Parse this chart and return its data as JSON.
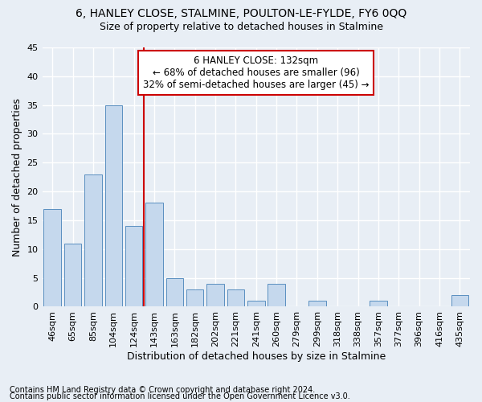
{
  "title1": "6, HANLEY CLOSE, STALMINE, POULTON-LE-FYLDE, FY6 0QQ",
  "title2": "Size of property relative to detached houses in Stalmine",
  "xlabel": "Distribution of detached houses by size in Stalmine",
  "ylabel": "Number of detached properties",
  "categories": [
    "46sqm",
    "65sqm",
    "85sqm",
    "104sqm",
    "124sqm",
    "143sqm",
    "163sqm",
    "182sqm",
    "202sqm",
    "221sqm",
    "241sqm",
    "260sqm",
    "279sqm",
    "299sqm",
    "318sqm",
    "338sqm",
    "357sqm",
    "377sqm",
    "396sqm",
    "416sqm",
    "435sqm"
  ],
  "values": [
    17,
    11,
    23,
    35,
    14,
    18,
    5,
    3,
    4,
    3,
    1,
    4,
    0,
    1,
    0,
    0,
    1,
    0,
    0,
    0,
    2
  ],
  "bar_color": "#c5d8ed",
  "bar_edge_color": "#5a8fc0",
  "annotation_line1": "6 HANLEY CLOSE: 132sqm",
  "annotation_line2": "← 68% of detached houses are smaller (96)",
  "annotation_line3": "32% of semi-detached houses are larger (45) →",
  "vline_x": 4.5,
  "annotation_box_color": "#ffffff",
  "annotation_box_edge": "#cc0000",
  "vline_color": "#cc0000",
  "footnote1": "Contains HM Land Registry data © Crown copyright and database right 2024.",
  "footnote2": "Contains public sector information licensed under the Open Government Licence v3.0.",
  "ylim": [
    0,
    45
  ],
  "yticks": [
    0,
    5,
    10,
    15,
    20,
    25,
    30,
    35,
    40,
    45
  ],
  "background_color": "#e8eef5",
  "plot_bg_color": "#e8eef5",
  "grid_color": "#ffffff",
  "title1_fontsize": 10,
  "title2_fontsize": 9,
  "axis_label_fontsize": 9,
  "tick_fontsize": 8,
  "annotation_fontsize": 8.5,
  "footnote_fontsize": 7
}
